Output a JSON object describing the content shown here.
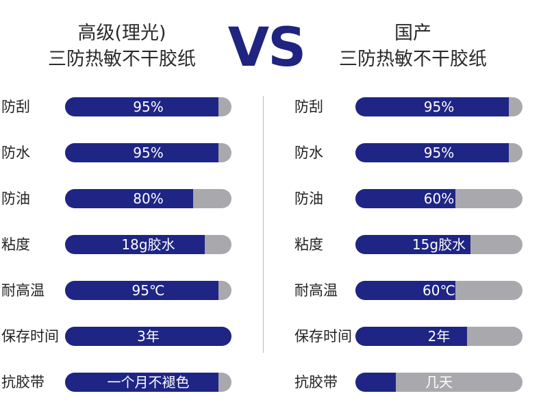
{
  "header": {
    "left_title_line1": "高级(理光)",
    "left_title_line2": "三防热敏不干胶纸",
    "vs": "VS",
    "right_title_line1": "国产",
    "right_title_line2": "三防热敏不干胶纸"
  },
  "colors": {
    "fill": "#1f2585",
    "track": "#a9a9ad",
    "vs": "#1f2480"
  },
  "chart_data": [
    {
      "type": "bar",
      "title": "高级(理光) 三防热敏不干胶纸",
      "categories": [
        "防刮",
        "防水",
        "防油",
        "粘度",
        "耐高温",
        "保存时间",
        "抗胶带"
      ],
      "labels": [
        "95%",
        "95%",
        "80%",
        "18g胶水",
        "95℃",
        "3年",
        "一个月不褪色"
      ],
      "values": [
        0.92,
        0.92,
        0.77,
        0.84,
        0.92,
        1.0,
        0.92
      ]
    },
    {
      "type": "bar",
      "title": "国产 三防热敏不干胶纸",
      "categories": [
        "防刮",
        "防水",
        "防油",
        "粘度",
        "耐高温",
        "保存时间",
        "抗胶带"
      ],
      "labels": [
        "95%",
        "95%",
        "60%",
        "15g胶水",
        "60℃",
        "2年",
        "几天"
      ],
      "values": [
        0.92,
        0.92,
        0.6,
        0.69,
        0.6,
        0.67,
        0.24
      ]
    }
  ]
}
